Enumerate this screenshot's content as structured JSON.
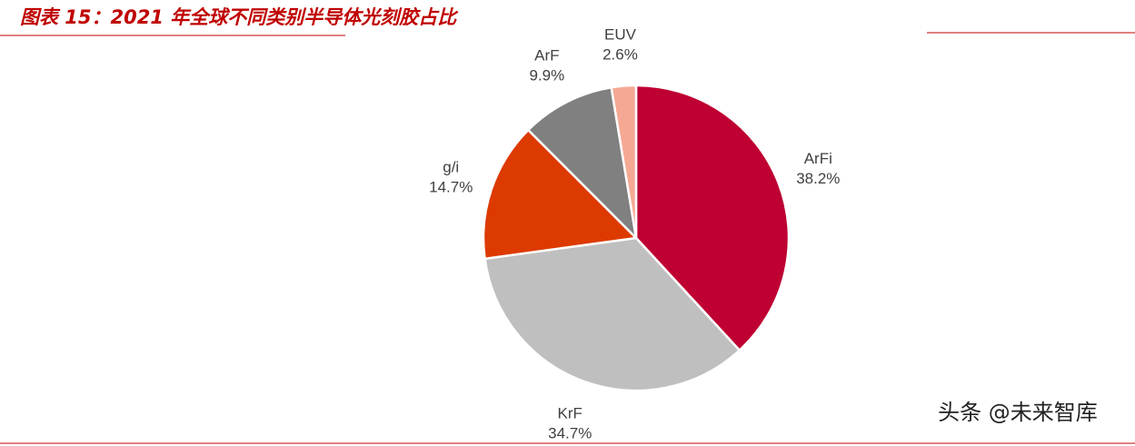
{
  "chart_data": {
    "type": "pie",
    "title": "图表 15：2021 年全球不同类别半导体光刻胶占比",
    "categories": [
      "ArFi",
      "KrF",
      "g/i",
      "ArF",
      "EUV"
    ],
    "values": [
      38.2,
      34.7,
      14.7,
      9.9,
      2.6
    ],
    "value_labels": [
      "38.2%",
      "34.7%",
      "14.7%",
      "9.9%",
      "2.6%"
    ],
    "colors": [
      "#be0032",
      "#bfbfbf",
      "#dd3a00",
      "#808080",
      "#f5a994"
    ]
  },
  "watermark": "头条 @未来智库"
}
